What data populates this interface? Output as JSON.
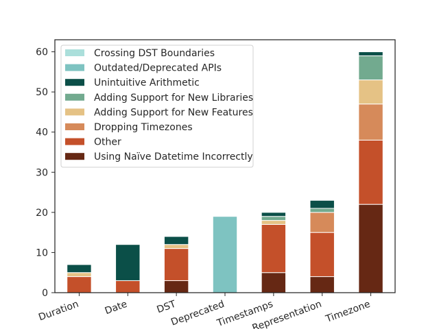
{
  "chart_data": {
    "type": "bar",
    "stacked": true,
    "categories": [
      "Duration",
      "Date",
      "DST",
      "Deprecated",
      "Timestamps",
      "Representation",
      "Timezone"
    ],
    "series": [
      {
        "name": "Using Naïve Datetime Incorrectly",
        "color": "#662814",
        "values": [
          0,
          0,
          3,
          0,
          5,
          4,
          22
        ]
      },
      {
        "name": "Other",
        "color": "#c4502a",
        "values": [
          4,
          3,
          8,
          0,
          12,
          11,
          16
        ]
      },
      {
        "name": "Dropping Timezones",
        "color": "#d68a5a",
        "values": [
          0,
          0,
          0,
          0,
          0,
          5,
          9
        ]
      },
      {
        "name": "Adding Support for New Features",
        "color": "#e5c285",
        "values": [
          1,
          0,
          1,
          0,
          1,
          0,
          6
        ]
      },
      {
        "name": "Adding Support for New Libraries",
        "color": "#72aa8f",
        "values": [
          0,
          0,
          0,
          0,
          1,
          1,
          6
        ]
      },
      {
        "name": "Unintuitive Arithmetic",
        "color": "#0b4f48",
        "values": [
          2,
          9,
          2,
          0,
          1,
          2,
          1
        ]
      },
      {
        "name": "Outdated/Deprecated APIs",
        "color": "#7ec3c1",
        "values": [
          0,
          0,
          0,
          19,
          0,
          0,
          0
        ]
      },
      {
        "name": "Crossing DST Boundaries",
        "color": "#abdfdb",
        "values": [
          0,
          0,
          0,
          0,
          0,
          0,
          0
        ]
      }
    ],
    "legend_order": [
      "Crossing DST Boundaries",
      "Outdated/Deprecated APIs",
      "Unintuitive Arithmetic",
      "Adding Support for New Libraries",
      "Adding Support for New Features",
      "Dropping Timezones",
      "Other",
      "Using Naïve Datetime Incorrectly"
    ],
    "yticks": [
      0,
      10,
      20,
      30,
      40,
      50,
      60
    ],
    "ylim": [
      0,
      63
    ],
    "xlabel": "",
    "ylabel": "",
    "title": "",
    "legend_position": "top-left",
    "grid": false
  }
}
